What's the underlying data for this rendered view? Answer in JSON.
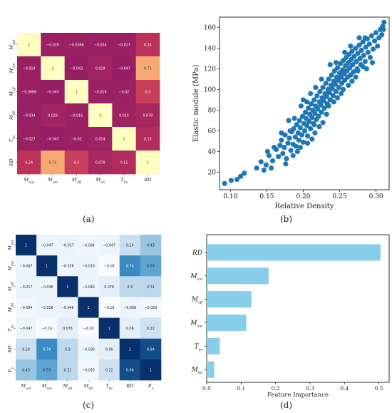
{
  "panels": {
    "a": {
      "caption": "(a)"
    },
    "b": {
      "caption": "(b)"
    },
    "c": {
      "caption": "(c)"
    },
    "d": {
      "caption": "(d)"
    }
  },
  "chart_data": [
    {
      "id": "a",
      "type": "heatmap",
      "title": "",
      "row_labels": [
        {
          "base": "M",
          "sub": "out"
        },
        {
          "base": "M",
          "sub": "inn"
        },
        {
          "base": "M",
          "sub": "off"
        },
        {
          "base": "M",
          "sub": "SS"
        },
        {
          "base": "T",
          "sub": "bs"
        },
        {
          "base": "RD",
          "sub": ""
        }
      ],
      "col_labels": [
        {
          "base": "M",
          "sub": "out"
        },
        {
          "base": "M",
          "sub": "inn"
        },
        {
          "base": "M",
          "sub": "off"
        },
        {
          "base": "M",
          "sub": "SS"
        },
        {
          "base": "T",
          "sub": "bs"
        },
        {
          "base": "RD",
          "sub": ""
        }
      ],
      "values": [
        [
          1,
          -0.019,
          -0.0068,
          -0.034,
          -0.027,
          0.24
        ],
        [
          -0.019,
          1,
          -0.043,
          0.029,
          -0.047,
          0.75
        ],
        [
          -0.0068,
          -0.043,
          1,
          -0.016,
          -0.02,
          0.3
        ],
        [
          -0.034,
          0.029,
          -0.016,
          1,
          0.014,
          0.078
        ],
        [
          -0.027,
          -0.047,
          -0.02,
          0.014,
          1,
          0.15
        ],
        [
          0.24,
          0.75,
          0.3,
          0.078,
          0.15,
          1
        ]
      ],
      "cell_text": [
        [
          "1",
          "−0.019",
          "−0.0068",
          "−0.034",
          "−0.027",
          "0.24"
        ],
        [
          "−0.019",
          "1",
          "−0.043",
          "0.029",
          "−0.047",
          "0.75"
        ],
        [
          "−0.0068",
          "−0.043",
          "1",
          "−0.016",
          "−0.02",
          "0.3"
        ],
        [
          "−0.034",
          "0.029",
          "−0.016",
          "1",
          "0.014",
          "0.078"
        ],
        [
          "−0.027",
          "−0.047",
          "−0.02",
          "0.014",
          "1",
          "0.15"
        ],
        [
          "0.24",
          "0.75",
          "0.3",
          "0.078",
          "0.15",
          "1"
        ]
      ],
      "colormap": "magma-like (purple-red to pale yellow)"
    },
    {
      "id": "b",
      "type": "scatter",
      "title": "",
      "xlabel": "Relative Density",
      "ylabel": "Elastic module (MPa)",
      "xlim": [
        0.085,
        0.318
      ],
      "ylim": [
        3,
        170
      ],
      "xticks": [
        0.1,
        0.15,
        0.2,
        0.25,
        0.3
      ],
      "xtick_labels": [
        "0.10",
        "0.15",
        "0.20",
        "0.25",
        "0.30"
      ],
      "yticks": [
        20,
        40,
        60,
        80,
        100,
        120,
        140,
        160
      ],
      "ytick_labels": [
        "20",
        "40",
        "60",
        "80",
        "100",
        "120",
        "140",
        "160"
      ],
      "color": "#1f77b4",
      "points": [
        [
          0.092,
          9
        ],
        [
          0.101,
          12
        ],
        [
          0.109,
          13
        ],
        [
          0.114,
          16
        ],
        [
          0.119,
          19
        ],
        [
          0.136,
          24
        ],
        [
          0.142,
          30
        ],
        [
          0.146,
          22
        ],
        [
          0.149,
          27
        ],
        [
          0.151,
          40
        ],
        [
          0.153,
          36
        ],
        [
          0.156,
          24
        ],
        [
          0.158,
          31
        ],
        [
          0.163,
          42
        ],
        [
          0.166,
          35
        ],
        [
          0.168,
          46
        ],
        [
          0.17,
          51
        ],
        [
          0.172,
          38
        ],
        [
          0.174,
          44
        ],
        [
          0.175,
          56
        ],
        [
          0.177,
          33
        ],
        [
          0.179,
          48
        ],
        [
          0.181,
          53
        ],
        [
          0.183,
          41
        ],
        [
          0.184,
          59
        ],
        [
          0.186,
          47
        ],
        [
          0.187,
          62
        ],
        [
          0.189,
          54
        ],
        [
          0.19,
          45
        ],
        [
          0.191,
          66
        ],
        [
          0.193,
          58
        ],
        [
          0.194,
          51
        ],
        [
          0.195,
          70
        ],
        [
          0.196,
          63
        ],
        [
          0.198,
          56
        ],
        [
          0.199,
          74
        ],
        [
          0.2,
          49
        ],
        [
          0.201,
          67
        ],
        [
          0.202,
          60
        ],
        [
          0.203,
          78
        ],
        [
          0.204,
          72
        ],
        [
          0.205,
          65
        ],
        [
          0.206,
          55
        ],
        [
          0.207,
          82
        ],
        [
          0.208,
          69
        ],
        [
          0.209,
          76
        ],
        [
          0.21,
          62
        ],
        [
          0.211,
          86
        ],
        [
          0.212,
          73
        ],
        [
          0.213,
          80
        ],
        [
          0.214,
          67
        ],
        [
          0.215,
          90
        ],
        [
          0.216,
          77
        ],
        [
          0.217,
          84
        ],
        [
          0.218,
          71
        ],
        [
          0.219,
          94
        ],
        [
          0.22,
          81
        ],
        [
          0.221,
          74
        ],
        [
          0.222,
          88
        ],
        [
          0.223,
          98
        ],
        [
          0.224,
          85
        ],
        [
          0.225,
          78
        ],
        [
          0.226,
          92
        ],
        [
          0.227,
          102
        ],
        [
          0.228,
          89
        ],
        [
          0.229,
          82
        ],
        [
          0.23,
          96
        ],
        [
          0.231,
          106
        ],
        [
          0.232,
          93
        ],
        [
          0.233,
          86
        ],
        [
          0.234,
          100
        ],
        [
          0.235,
          110
        ],
        [
          0.236,
          97
        ],
        [
          0.237,
          90
        ],
        [
          0.238,
          104
        ],
        [
          0.239,
          114
        ],
        [
          0.24,
          101
        ],
        [
          0.241,
          94
        ],
        [
          0.242,
          108
        ],
        [
          0.243,
          118
        ],
        [
          0.244,
          105
        ],
        [
          0.245,
          98
        ],
        [
          0.246,
          112
        ],
        [
          0.247,
          121
        ],
        [
          0.248,
          109
        ],
        [
          0.249,
          102
        ],
        [
          0.25,
          116
        ],
        [
          0.251,
          125
        ],
        [
          0.252,
          112
        ],
        [
          0.253,
          106
        ],
        [
          0.254,
          119
        ],
        [
          0.255,
          128
        ],
        [
          0.256,
          115
        ],
        [
          0.257,
          109
        ],
        [
          0.258,
          123
        ],
        [
          0.259,
          131
        ],
        [
          0.26,
          118
        ],
        [
          0.261,
          112
        ],
        [
          0.262,
          126
        ],
        [
          0.263,
          134
        ],
        [
          0.264,
          121
        ],
        [
          0.265,
          114
        ],
        [
          0.266,
          129
        ],
        [
          0.267,
          137
        ],
        [
          0.268,
          124
        ],
        [
          0.269,
          117
        ],
        [
          0.27,
          132
        ],
        [
          0.272,
          140
        ],
        [
          0.273,
          127
        ],
        [
          0.274,
          120
        ],
        [
          0.275,
          135
        ],
        [
          0.277,
          143
        ],
        [
          0.278,
          130
        ],
        [
          0.279,
          124
        ],
        [
          0.28,
          138
        ],
        [
          0.282,
          146
        ],
        [
          0.283,
          133
        ],
        [
          0.285,
          127
        ],
        [
          0.286,
          141
        ],
        [
          0.288,
          149
        ],
        [
          0.289,
          136
        ],
        [
          0.291,
          144
        ],
        [
          0.292,
          131
        ],
        [
          0.294,
          152
        ],
        [
          0.296,
          139
        ],
        [
          0.298,
          147
        ],
        [
          0.3,
          155
        ],
        [
          0.302,
          142
        ],
        [
          0.304,
          150
        ],
        [
          0.306,
          158
        ],
        [
          0.308,
          153
        ],
        [
          0.309,
          161
        ],
        [
          0.311,
          165
        ],
        [
          0.31,
          158
        ],
        [
          0.205,
          88
        ],
        [
          0.215,
          66
        ],
        [
          0.225,
          110
        ],
        [
          0.235,
          84
        ],
        [
          0.245,
          126
        ],
        [
          0.255,
          100
        ],
        [
          0.265,
          142
        ],
        [
          0.275,
          118
        ],
        [
          0.285,
          150
        ],
        [
          0.295,
          126
        ],
        [
          0.188,
          72
        ],
        [
          0.197,
          84
        ],
        [
          0.217,
          102
        ],
        [
          0.227,
          68
        ],
        [
          0.237,
          124
        ],
        [
          0.247,
          92
        ],
        [
          0.257,
          136
        ],
        [
          0.267,
          108
        ],
        [
          0.277,
          150
        ],
        [
          0.287,
          120
        ],
        [
          0.182,
          60
        ],
        [
          0.192,
          40
        ],
        [
          0.212,
          52
        ],
        [
          0.222,
          64
        ],
        [
          0.232,
          76
        ],
        [
          0.242,
          88
        ],
        [
          0.252,
          96
        ],
        [
          0.262,
          104
        ],
        [
          0.272,
          112
        ],
        [
          0.282,
          122
        ],
        [
          0.176,
          28
        ],
        [
          0.186,
          36
        ],
        [
          0.196,
          44
        ],
        [
          0.206,
          48
        ],
        [
          0.216,
          58
        ],
        [
          0.16,
          44
        ],
        [
          0.17,
          58
        ],
        [
          0.18,
          70
        ],
        [
          0.2,
          90
        ],
        [
          0.21,
          96
        ]
      ]
    },
    {
      "id": "c",
      "type": "heatmap",
      "title": "",
      "row_labels": [
        {
          "base": "M",
          "sub": "out"
        },
        {
          "base": "M",
          "sub": "inn"
        },
        {
          "base": "M",
          "sub": "off"
        },
        {
          "base": "M",
          "sub": "SS"
        },
        {
          "base": "T",
          "sub": "bs"
        },
        {
          "base": "RD",
          "sub": ""
        },
        {
          "base": "E",
          "sub": "s"
        }
      ],
      "col_labels": [
        {
          "base": "M",
          "sub": "out"
        },
        {
          "base": "M",
          "sub": "inn"
        },
        {
          "base": "M",
          "sub": "off"
        },
        {
          "base": "M",
          "sub": "SS"
        },
        {
          "base": "T",
          "sub": "bs"
        },
        {
          "base": "RD",
          "sub": ""
        },
        {
          "base": "E",
          "sub": "s"
        }
      ],
      "values": [
        [
          1,
          -0.047,
          -0.017,
          -0.094,
          -0.047,
          0.24,
          0.43
        ],
        [
          -0.047,
          1,
          -0.036,
          -0.026,
          -0.16,
          0.74,
          0.59
        ],
        [
          -0.017,
          -0.036,
          1,
          -0.046,
          0.076,
          0.3,
          0.31
        ],
        [
          -0.094,
          -0.026,
          -0.046,
          1,
          -0.16,
          -0.038,
          -0.093
        ],
        [
          -0.047,
          -0.16,
          0.076,
          -0.16,
          1,
          0.06,
          0.22
        ],
        [
          0.24,
          0.74,
          0.3,
          -0.038,
          0.06,
          1,
          0.94
        ],
        [
          0.43,
          0.59,
          0.31,
          -0.093,
          0.22,
          0.94,
          1
        ]
      ],
      "cell_text": [
        [
          "1",
          "−0.047",
          "−0.017",
          "−0.094",
          "−0.047",
          "0.24",
          "0.43"
        ],
        [
          "−0.047",
          "1",
          "−0.036",
          "−0.026",
          "−0.16",
          "0.74",
          "0.59"
        ],
        [
          "−0.017",
          "−0.036",
          "1",
          "−0.046",
          "0.076",
          "0.3",
          "0.31"
        ],
        [
          "−0.094",
          "−0.026",
          "−0.046",
          "1",
          "−0.16",
          "−0.038",
          "−0.093"
        ],
        [
          "−0.047",
          "−0.16",
          "0.076",
          "−0.16",
          "1",
          "0.06",
          "0.22"
        ],
        [
          "0.24",
          "0.74",
          "0.3",
          "−0.038",
          "0.06",
          "1",
          "0.94"
        ],
        [
          "0.43",
          "0.59",
          "0.31",
          "−0.093",
          "0.22",
          "0.94",
          "1"
        ]
      ],
      "colormap": "Blues"
    },
    {
      "id": "d",
      "type": "bar",
      "orientation": "horizontal",
      "title": "",
      "xlabel": "Feature Importance",
      "ylabel": "",
      "categories": [
        {
          "base": "RD",
          "sub": ""
        },
        {
          "base": "M",
          "sub": "inn"
        },
        {
          "base": "M",
          "sub": "off"
        },
        {
          "base": "M",
          "sub": "out"
        },
        {
          "base": "T",
          "sub": "bs"
        },
        {
          "base": "M",
          "sub": "SS"
        }
      ],
      "values": [
        0.505,
        0.18,
        0.13,
        0.115,
        0.038,
        0.022
      ],
      "xlim": [
        0,
        0.53
      ],
      "xticks": [
        0.0,
        0.1,
        0.2,
        0.3,
        0.4,
        0.5
      ],
      "xtick_labels": [
        "0.0",
        "0.1",
        "0.2",
        "0.3",
        "0.4",
        "0.5"
      ],
      "color": "#87ceeb"
    }
  ]
}
